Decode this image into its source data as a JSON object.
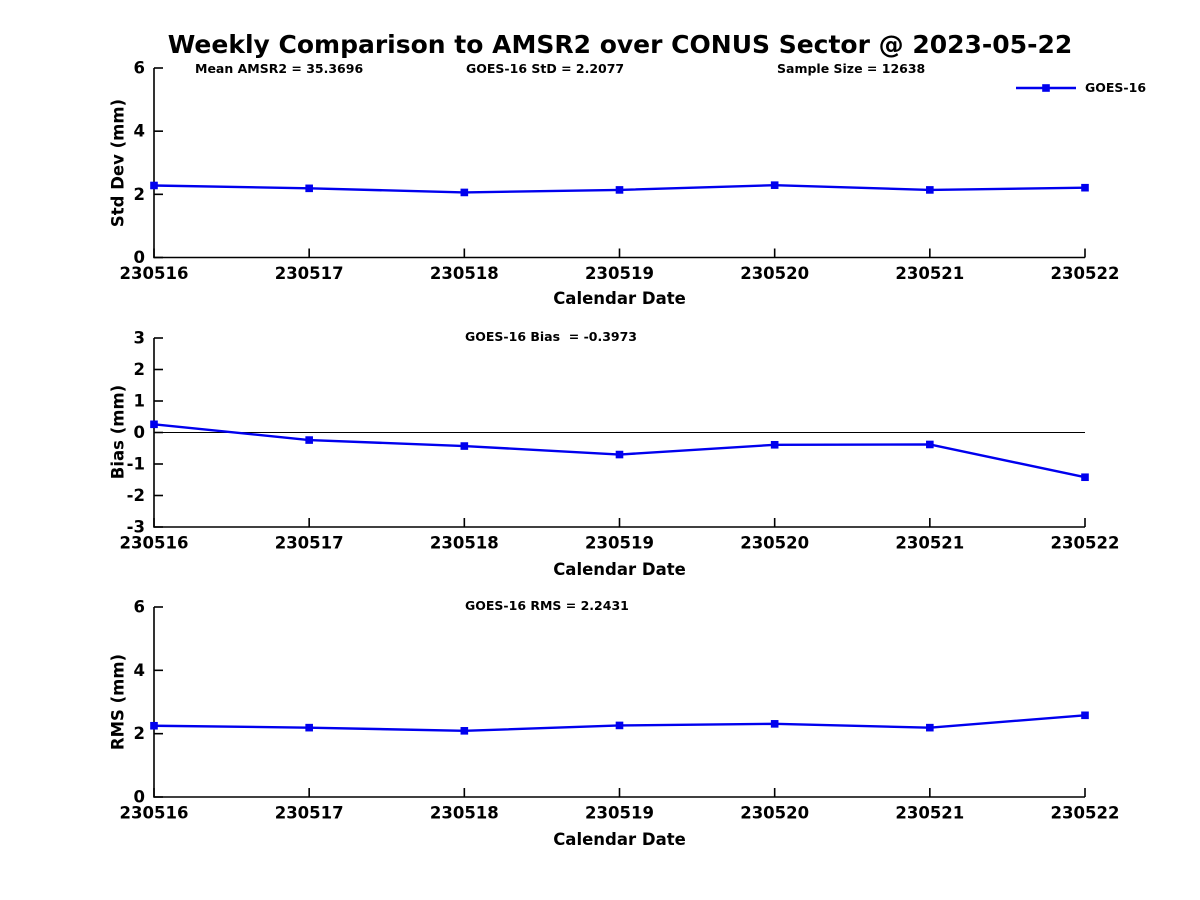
{
  "page": {
    "title": "Weekly Comparison to AMSR2 over CONUS Sector @ 2023-05-22"
  },
  "legend": {
    "label": "GOES-16",
    "position": "top-right-outside"
  },
  "colors": {
    "series_line": "#0000EE",
    "axis": "#000000",
    "text": "#000000",
    "background": "#ffffff"
  },
  "chart_data": [
    {
      "type": "line",
      "name": "std-dev",
      "annotations": [
        "Mean AMSR2 = 35.3696",
        "GOES-16 StD = 2.2077",
        "Sample Size = 12638"
      ],
      "xlabel": "Calendar Date",
      "ylabel": "Std Dev (mm)",
      "categories": [
        "230516",
        "230517",
        "230518",
        "230519",
        "230520",
        "230521",
        "230522"
      ],
      "series": [
        {
          "name": "GOES-16",
          "marker": "square",
          "values": [
            2.28,
            2.19,
            2.06,
            2.14,
            2.29,
            2.14,
            2.21
          ]
        }
      ],
      "ylim": [
        0,
        6
      ],
      "yticks": [
        0,
        2,
        4,
        6
      ],
      "zero_line": false,
      "grid": false
    },
    {
      "type": "line",
      "name": "bias",
      "annotations": [
        "GOES-16 Bias  = -0.3973"
      ],
      "xlabel": "Calendar Date",
      "ylabel": "Bias (mm)",
      "categories": [
        "230516",
        "230517",
        "230518",
        "230519",
        "230520",
        "230521",
        "230522"
      ],
      "series": [
        {
          "name": "GOES-16",
          "marker": "square",
          "values": [
            0.26,
            -0.24,
            -0.43,
            -0.7,
            -0.39,
            -0.38,
            -1.42
          ]
        }
      ],
      "ylim": [
        -3,
        3
      ],
      "yticks": [
        -3,
        -2,
        -1,
        0,
        1,
        2,
        3
      ],
      "zero_line": true,
      "grid": false
    },
    {
      "type": "line",
      "name": "rms",
      "annotations": [
        "GOES-16 RMS = 2.2431"
      ],
      "xlabel": "Calendar Date",
      "ylabel": "RMS (mm)",
      "categories": [
        "230516",
        "230517",
        "230518",
        "230519",
        "230520",
        "230521",
        "230522"
      ],
      "series": [
        {
          "name": "GOES-16",
          "marker": "square",
          "values": [
            2.25,
            2.19,
            2.09,
            2.26,
            2.31,
            2.19,
            2.58
          ]
        }
      ],
      "ylim": [
        0,
        6
      ],
      "yticks": [
        0,
        2,
        4,
        6
      ],
      "zero_line": false,
      "grid": false
    }
  ]
}
